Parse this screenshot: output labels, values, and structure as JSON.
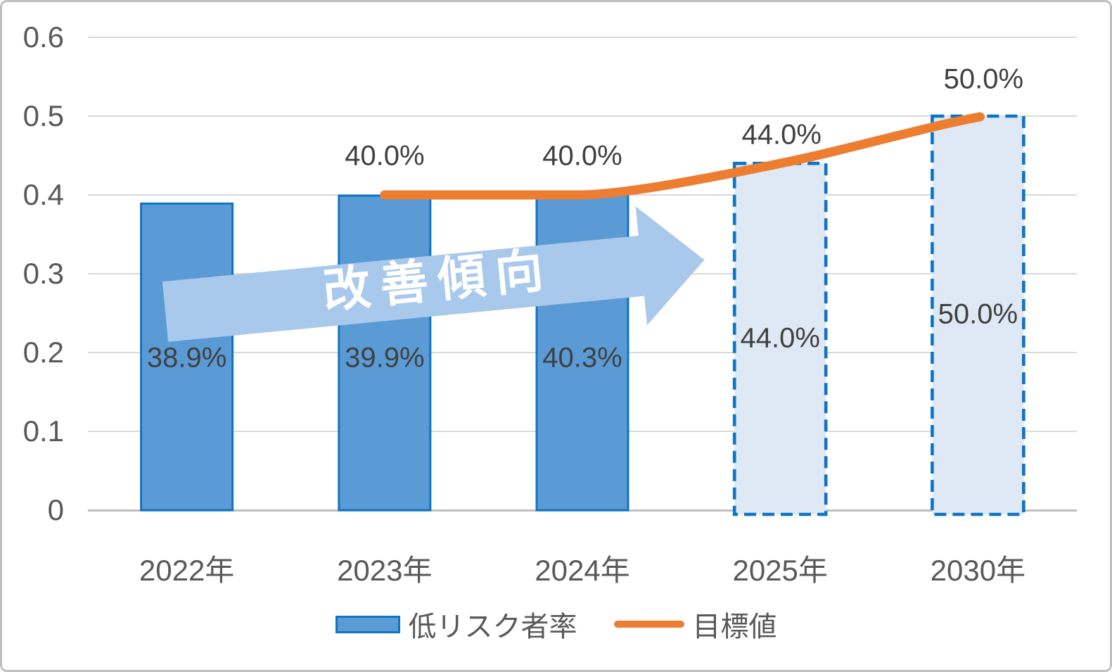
{
  "chart_data": {
    "type": "bar",
    "subtype": "bar-line-combo",
    "categories": [
      "2022年",
      "2023年",
      "2024年",
      "2025年",
      "2030年"
    ],
    "series": [
      {
        "name": "低リスク者率",
        "type": "bar",
        "values": [
          0.389,
          0.399,
          0.403,
          0.44,
          0.5
        ],
        "labels": [
          "38.9%",
          "39.9%",
          "40.3%",
          "44.0%",
          "50.0%"
        ],
        "bar_styles": [
          "solid",
          "solid",
          "solid",
          "dashed",
          "dashed"
        ]
      },
      {
        "name": "目標値",
        "type": "line",
        "categories": [
          "2023年",
          "2024年",
          "2025年",
          "2030年"
        ],
        "values": [
          0.4,
          0.4,
          0.44,
          0.5
        ],
        "labels": [
          "40.0%",
          "40.0%",
          "44.0%",
          "50.0%"
        ]
      }
    ],
    "ylim": [
      0,
      0.6
    ],
    "ytick_labels": [
      "0",
      "0.1",
      "0.2",
      "0.3",
      "0.4",
      "0.5",
      "0.6"
    ],
    "grid": "horizontal-on",
    "legend_position": "bottom",
    "annotation": "改善傾向",
    "colors": {
      "bar_fill": "#5B9BD5",
      "bar_border": "#0E74C6",
      "forecast_fill": "#DEE9F5",
      "forecast_border": "#0E74C6",
      "target_line": "#ED7D31",
      "arrow_fill": "#A9C9EC",
      "arrow_text": "#FFFFFF",
      "data_label": "#404040",
      "axis_label": "#595959",
      "gridline": "#D9D9D9",
      "axis_line": "#BFBFBF",
      "frame_border": "#BFBFBF"
    }
  }
}
